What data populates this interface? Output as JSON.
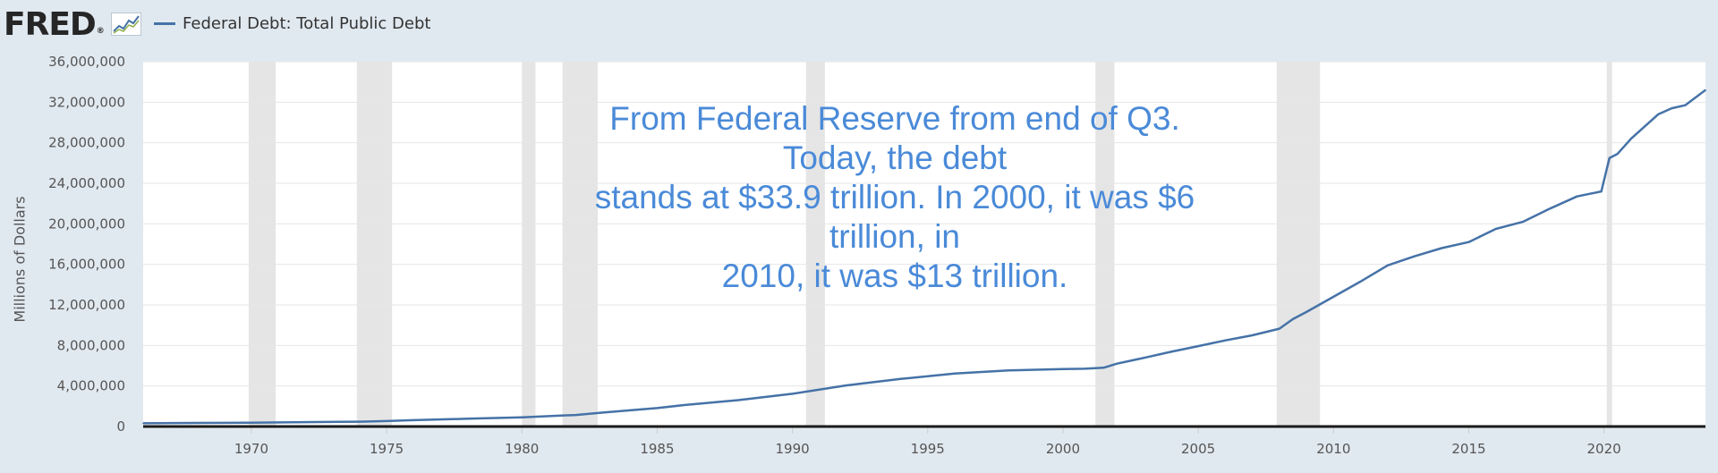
{
  "header": {
    "logo_text": "FRED",
    "logo_mark": "®",
    "logo_graph_icon": "trend-line-icon"
  },
  "chart_data": {
    "type": "line",
    "title": "",
    "legend": [
      {
        "name": "Federal Debt: Total Public Debt",
        "color": "#4572a7"
      }
    ],
    "legend_placement": "top-left",
    "ylabel": "Millions of Dollars",
    "xlabel": "",
    "xlim": [
      1966,
      2023.75
    ],
    "ylim": [
      0,
      36000000
    ],
    "grid": true,
    "y_ticks": [
      "0",
      "4,000,000",
      "8,000,000",
      "12,000,000",
      "16,000,000",
      "20,000,000",
      "24,000,000",
      "28,000,000",
      "32,000,000",
      "36,000,000"
    ],
    "y_tick_values": [
      0,
      4000000,
      8000000,
      12000000,
      16000000,
      20000000,
      24000000,
      28000000,
      32000000,
      36000000
    ],
    "x_ticks": [
      "1970",
      "1975",
      "1980",
      "1985",
      "1990",
      "1995",
      "2000",
      "2005",
      "2010",
      "2015",
      "2020"
    ],
    "x_tick_values": [
      1970,
      1975,
      1980,
      1985,
      1990,
      1995,
      2000,
      2005,
      2010,
      2015,
      2020
    ],
    "recessions": [
      [
        1969.9,
        1970.9
      ],
      [
        1973.9,
        1975.2
      ],
      [
        1980.0,
        1980.5
      ],
      [
        1981.5,
        1982.8
      ],
      [
        1990.5,
        1991.2
      ],
      [
        2001.2,
        2001.9
      ],
      [
        2007.9,
        2009.5
      ],
      [
        2020.1,
        2020.3
      ]
    ],
    "series": [
      {
        "name": "Federal Debt: Total Public Debt",
        "x": [
          1966,
          1968,
          1970,
          1972,
          1974,
          1975,
          1976,
          1978,
          1980,
          1982,
          1983,
          1985,
          1986,
          1988,
          1990,
          1992,
          1994,
          1996,
          1998,
          2000,
          2000.8,
          2001.5,
          2002,
          2003,
          2004,
          2005,
          2006,
          2007,
          2008,
          2008.5,
          2009,
          2010,
          2011,
          2012,
          2013,
          2014,
          2015,
          2016,
          2017,
          2018,
          2019,
          2019.9,
          2020.2,
          2020.5,
          2021,
          2022,
          2022.5,
          2023,
          2023.75
        ],
        "y": [
          320000,
          350000,
          380000,
          430000,
          480000,
          540000,
          630000,
          770000,
          910000,
          1140000,
          1380000,
          1820000,
          2120000,
          2600000,
          3230000,
          4060000,
          4690000,
          5220000,
          5530000,
          5670000,
          5700000,
          5800000,
          6200000,
          6780000,
          7380000,
          7930000,
          8500000,
          9000000,
          9650000,
          10600000,
          11300000,
          12800000,
          14300000,
          15900000,
          16800000,
          17600000,
          18200000,
          19500000,
          20200000,
          21500000,
          22700000,
          23200000,
          26500000,
          26900000,
          28400000,
          30800000,
          31400000,
          31700000,
          33200000
        ]
      }
    ],
    "annotation": "From Federal Reserve from end of Q3. Today, the debt\nstands at $33.9 trillion.   In 2000, it was $6 trillion, in\n2010, it was $13 trillion."
  },
  "colors": {
    "page_background": "#e1e9f0",
    "plot_background": "#ffffff",
    "recession_band": "#e5e5e5",
    "series_line": "#4572a7",
    "annotation_text": "#4a8ad8"
  }
}
